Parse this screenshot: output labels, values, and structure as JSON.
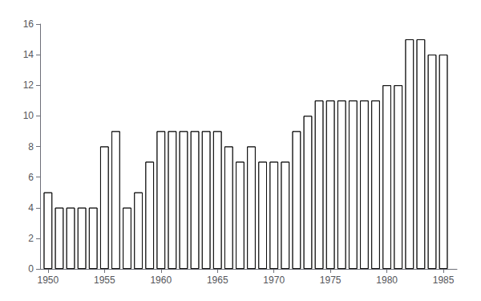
{
  "chart_data": {
    "type": "bar",
    "x": [
      1950,
      1951,
      1952,
      1953,
      1954,
      1955,
      1956,
      1957,
      1958,
      1959,
      1960,
      1961,
      1962,
      1963,
      1964,
      1965,
      1966,
      1967,
      1968,
      1969,
      1970,
      1971,
      1972,
      1973,
      1974,
      1975,
      1976,
      1977,
      1978,
      1979,
      1980,
      1981,
      1982,
      1983,
      1984,
      1985
    ],
    "values": [
      5,
      4,
      4,
      4,
      4,
      8,
      9,
      4,
      5,
      7,
      9,
      9,
      9,
      9,
      9,
      9,
      8,
      7,
      8,
      7,
      7,
      7,
      9,
      10,
      11,
      11,
      11,
      11,
      11,
      11,
      12,
      12,
      15,
      15,
      14,
      14
    ],
    "color": "#ffffff",
    "xlim": [
      1949.3,
      1986.2
    ],
    "xticks": [
      1950,
      1955,
      1960,
      1965,
      1970,
      1975,
      1980,
      1985
    ],
    "ylim": [
      0,
      16
    ],
    "yticks": [
      0,
      2,
      4,
      6,
      8,
      10,
      12,
      14,
      16
    ],
    "grid": false
  }
}
